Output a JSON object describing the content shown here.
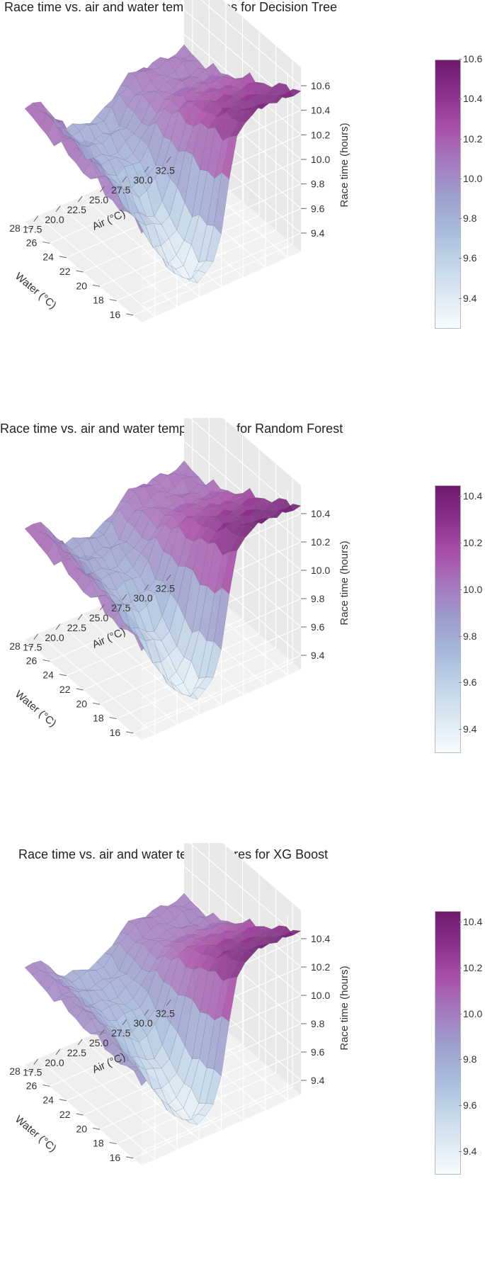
{
  "palette": {
    "colormap": [
      "#f7fbfd",
      "#dce9f3",
      "#bfd3e7",
      "#a6b9db",
      "#9d9dcc",
      "#a578be",
      "#aa4fa8",
      "#8c2f8c",
      "#6e1a6e"
    ],
    "pane_fill": "#efefef",
    "grid": "#ffffff",
    "mesh_edge": "#666677"
  },
  "chart_data": [
    {
      "type": "surface3d",
      "title": "Race time vs. air and water temperatures for Decision Tree",
      "xlabel": "Water (°C)",
      "ylabel": "Air (°C)",
      "zlabel": "Race time (hours)",
      "x_ticks": [
        "16",
        "18",
        "20",
        "22",
        "24",
        "26",
        "28"
      ],
      "y_ticks": [
        "17.5",
        "20.0",
        "22.5",
        "25.0",
        "27.5",
        "30.0",
        "32.5"
      ],
      "z_ticks": [
        "9.4",
        "9.6",
        "9.8",
        "10.0",
        "10.2",
        "10.4",
        "10.6"
      ],
      "colorbar_ticks": [
        "9.4",
        "9.6",
        "9.8",
        "10.0",
        "10.2",
        "10.4",
        "10.6"
      ],
      "x_range": [
        15,
        29
      ],
      "y_range": [
        16,
        34
      ],
      "z_range": [
        9.25,
        10.75
      ],
      "color_range": [
        9.25,
        10.6
      ],
      "surface": {
        "water": [
          15,
          29
        ],
        "air": [
          16,
          34
        ],
        "base": 9.85,
        "left_shoulder": 0.35,
        "trough_depth": 0.55,
        "hot_air": 10.1,
        "hot_water_peak": 10.55,
        "roughness": 0.06
      }
    },
    {
      "type": "surface3d",
      "title": "Race time vs. air and water temperatures for Random Forest",
      "xlabel": "Water (°C)",
      "ylabel": "Air (°C)",
      "zlabel": "Race time (hours)",
      "x_ticks": [
        "16",
        "18",
        "20",
        "22",
        "24",
        "26",
        "28"
      ],
      "y_ticks": [
        "17.5",
        "20.0",
        "22.5",
        "25.0",
        "27.5",
        "30.0",
        "32.5"
      ],
      "z_ticks": [
        "9.4",
        "9.6",
        "9.8",
        "10.0",
        "10.2",
        "10.4"
      ],
      "colorbar_ticks": [
        "9.4",
        "9.6",
        "9.8",
        "10.0",
        "10.2",
        "10.4"
      ],
      "x_range": [
        15,
        29
      ],
      "y_range": [
        16,
        34
      ],
      "z_range": [
        9.3,
        10.6
      ],
      "color_range": [
        9.3,
        10.45
      ],
      "surface": {
        "water": [
          15,
          29
        ],
        "air": [
          16,
          34
        ],
        "base": 9.85,
        "left_shoulder": 0.25,
        "trough_depth": 0.5,
        "hot_air": 10.05,
        "hot_water_peak": 10.45,
        "roughness": 0.05
      }
    },
    {
      "type": "surface3d",
      "title": "Race time vs. air and water temperatures for XG Boost",
      "xlabel": "Water (°C)",
      "ylabel": "Air (°C)",
      "zlabel": "Race time (hours)",
      "x_ticks": [
        "16",
        "18",
        "20",
        "22",
        "24",
        "26",
        "28"
      ],
      "y_ticks": [
        "17.5",
        "20.0",
        "22.5",
        "25.0",
        "27.5",
        "30.0",
        "32.5"
      ],
      "z_ticks": [
        "9.4",
        "9.6",
        "9.8",
        "10.0",
        "10.2",
        "10.4"
      ],
      "colorbar_ticks": [
        "9.4",
        "9.6",
        "9.8",
        "10.0",
        "10.2",
        "10.4"
      ],
      "x_range": [
        15,
        29
      ],
      "y_range": [
        16,
        34
      ],
      "z_range": [
        9.3,
        10.6
      ],
      "color_range": [
        9.3,
        10.45
      ],
      "surface": {
        "water": [
          15,
          29
        ],
        "air": [
          16,
          34
        ],
        "base": 9.8,
        "left_shoulder": 0.2,
        "trough_depth": 0.45,
        "hot_air": 10.0,
        "hot_water_peak": 10.45,
        "roughness": 0.04
      }
    }
  ]
}
